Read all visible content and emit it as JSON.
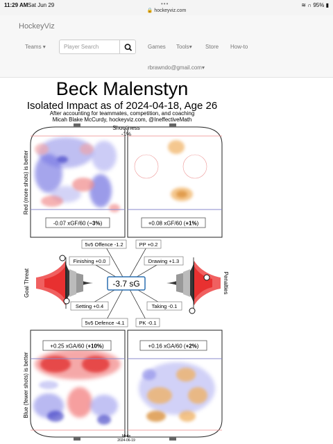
{
  "status_bar": {
    "time": "11:29 AM",
    "date": "Sat Jun 29",
    "url": "hockeyviz.com",
    "battery": "95%"
  },
  "navbar": {
    "brand": "HockeyViz",
    "teams": "Teams",
    "search_placeholder": "Player Search",
    "games": "Games",
    "tools": "Tools",
    "store": "Store",
    "howto": "How-to",
    "user": "rbrawndo@gmail.com"
  },
  "viz": {
    "player": "Beck Malenstyn",
    "subtitle": "Isolated Impact as of 2024-04-18, Age 26",
    "note1": "After accounting for teammates, competition, and coaching",
    "note2": "Micah Blake McCurdy, hockeyviz.com, @IneffectiveMath",
    "shootiness_label": "Shootiness",
    "shootiness_value": "-1%",
    "left_axis_top": "Red (more shots) is better",
    "left_axis_bottom": "Blue (fewer shots) is better",
    "goal_threat": "Goal Threat",
    "penalties": "Penalties",
    "center_value": "-3.7 sG",
    "xgf_left": "-0.07 xGF/60 (",
    "xgf_left_bold": "−3%",
    "xgf_right": "+0.08 xGF/60 (",
    "xgf_right_bold": "+1%",
    "xga_left": "+0.25 xGA/60 (",
    "xga_left_bold": "+10%",
    "xga_right": "+0.16 xGA/60 (",
    "xga_right_bold": "+2%",
    "close_paren": ")",
    "components": {
      "offence": "5v5 Offence -1.2",
      "pp": "PP +0.2",
      "finishing": "Finishing +0.0",
      "drawing": "Drawing +1.3",
      "setting": "Setting +0.4",
      "taking": "Taking -0.1",
      "defence": "5v5 Defence -4.1",
      "pk": "PK -0.1"
    },
    "made_label": "Made",
    "made_date": "2024-06-19"
  },
  "colors": {
    "red": "#e8303a",
    "blue": "#3a3ad6",
    "orange": "#e89a40",
    "box_border": "#2a6fb0"
  }
}
